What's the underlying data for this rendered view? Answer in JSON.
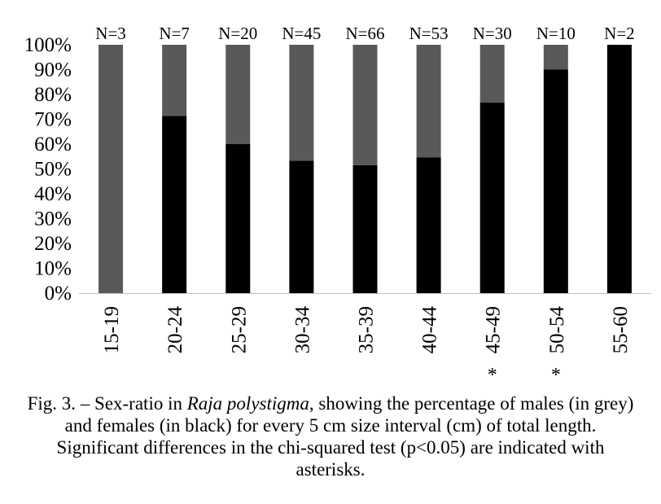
{
  "chart_data": {
    "type": "bar",
    "stacked": true,
    "percent": true,
    "categories": [
      "15-19",
      "20-24",
      "25-29",
      "30-34",
      "35-39",
      "40-44",
      "45-49",
      "50-54",
      "55-60"
    ],
    "n_labels": [
      "N=3",
      "N=7",
      "N=20",
      "N=45",
      "N=66",
      "N=53",
      "N=30",
      "N=10",
      "N=2"
    ],
    "significance": [
      "",
      "",
      "",
      "",
      "",
      "",
      "*",
      "*",
      ""
    ],
    "series": [
      {
        "name": "females",
        "color": "#000000",
        "values": [
          0,
          71.4,
          60,
          53.3,
          51.5,
          54.7,
          76.7,
          90,
          100
        ]
      },
      {
        "name": "males",
        "color": "#595959",
        "values": [
          100,
          28.6,
          40,
          46.7,
          48.5,
          45.3,
          23.3,
          10,
          0
        ]
      }
    ],
    "ylim": [
      0,
      100
    ],
    "yticks": [
      "0%",
      "10%",
      "20%",
      "30%",
      "40%",
      "50%",
      "60%",
      "70%",
      "80%",
      "90%",
      "100%"
    ],
    "xlabel": "",
    "ylabel": "",
    "grid": false,
    "legend": "none"
  },
  "caption": {
    "before_italic": "Fig. 3. – Sex-ratio in ",
    "italic": "Raja polystigma",
    "after_italic": ", showing the percentage of males (in grey) and females (in black) for every 5 cm size interval (cm) of total length. Significant differences in the chi-squared test (p<0.05) are indicated with asterisks."
  }
}
